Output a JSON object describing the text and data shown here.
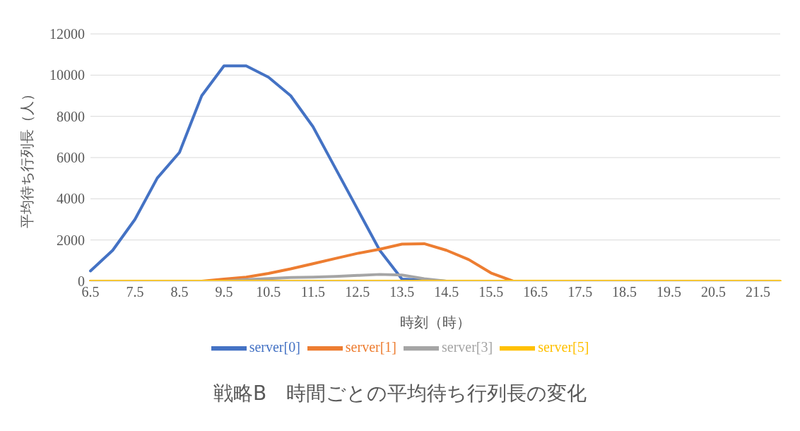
{
  "chart_data": {
    "type": "line",
    "title": "戦略B　時間ごとの平均待ち行列長の変化",
    "xlabel": "時刻（時）",
    "ylabel": "平均待ち行列長（人）",
    "categories": [
      "6.5",
      null,
      "7.5",
      null,
      "8.5",
      null,
      "9.5",
      null,
      "10.5",
      null,
      "11.5",
      null,
      "12.5",
      null,
      "13.5",
      null,
      "14.5",
      null,
      "15.5",
      null,
      "16.5",
      null,
      "17.5",
      null,
      "18.5",
      null,
      "19.5",
      null,
      "20.5",
      null,
      "21.5",
      null
    ],
    "series": [
      {
        "name": "server[0]",
        "color": "#4472c4",
        "values": [
          500,
          1500,
          3000,
          5000,
          6250,
          9000,
          10450,
          10450,
          9900,
          9000,
          7500,
          5500,
          3500,
          1500,
          100,
          50,
          0,
          null,
          null,
          null,
          null,
          null,
          null,
          null,
          null,
          null,
          null,
          null,
          null,
          null,
          null,
          null
        ]
      },
      {
        "name": "server[1]",
        "color": "#ed7d31",
        "values": [
          0,
          0,
          0,
          0,
          0,
          0,
          100,
          200,
          380,
          600,
          850,
          1100,
          1350,
          1550,
          1800,
          1820,
          1500,
          1050,
          400,
          0,
          0,
          null,
          null,
          null,
          null,
          null,
          null,
          null,
          null,
          null,
          null,
          null
        ]
      },
      {
        "name": "server[3]",
        "color": "#a5a5a5",
        "values": [
          null,
          null,
          null,
          null,
          null,
          null,
          0,
          80,
          130,
          180,
          200,
          230,
          280,
          330,
          300,
          120,
          0,
          null,
          null,
          null,
          null,
          null,
          null,
          null,
          null,
          null,
          null,
          null,
          null,
          null,
          null,
          null
        ]
      },
      {
        "name": "server[5]",
        "color": "#ffc000",
        "values": [
          0,
          0,
          0,
          0,
          0,
          0,
          0,
          0,
          0,
          0,
          0,
          0,
          0,
          0,
          0,
          0,
          0,
          0,
          0,
          0,
          0,
          0,
          0,
          0,
          0,
          0,
          0,
          0,
          0,
          0,
          0,
          0
        ]
      }
    ],
    "ylim": [
      0,
      12000
    ],
    "yticks": [
      0,
      2000,
      4000,
      6000,
      8000,
      10000,
      12000
    ],
    "grid": "y",
    "legend": "bottom",
    "marker": "none",
    "line_style": "solid"
  }
}
